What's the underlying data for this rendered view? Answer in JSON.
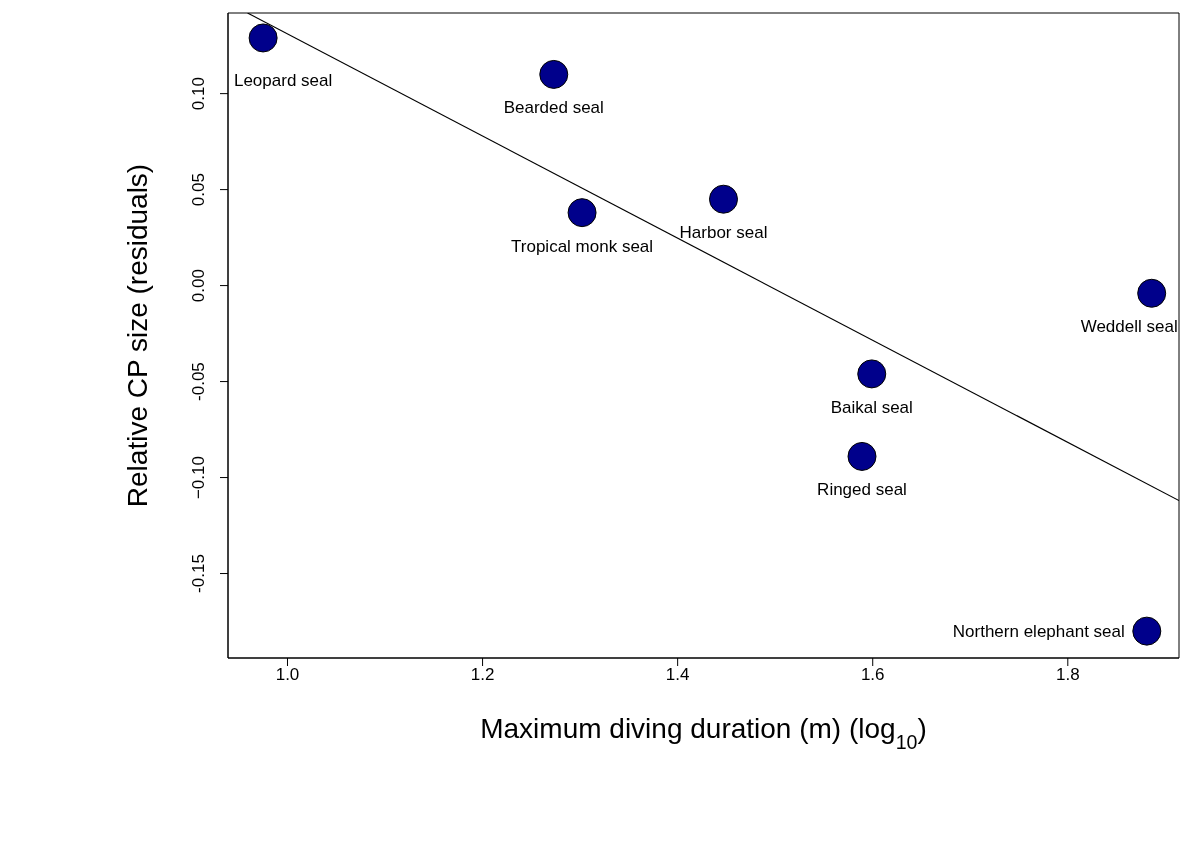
{
  "chart_data": {
    "type": "scatter",
    "xlabel": "Maximum diving duration (m) (log$_{10}$)",
    "ylabel": "Relative CP size (residuals)",
    "xlim": [
      0.939,
      1.914
    ],
    "ylim": [
      -0.194,
      0.142
    ],
    "xticks": [
      {
        "value": 1,
        "label": "1.0"
      },
      1.2,
      1.4,
      1.6,
      1.8
    ],
    "yticks": [
      -0.15,
      {
        "value": -0.1,
        "label": "−0.10"
      },
      -0.05,
      {
        "value": 0,
        "label": "0.00"
      },
      0.05,
      {
        "value": 0.1,
        "label": "0.10"
      }
    ],
    "grid": false,
    "legend": false,
    "marker": "circle",
    "series": [
      {
        "color": "#00008b",
        "x": [
          0.975,
          1.273,
          1.302,
          1.447,
          1.886,
          1.599,
          1.589,
          1.881
        ],
        "values": [
          0.129,
          0.11,
          0.038,
          0.045,
          -0.004,
          -0.046,
          -0.089,
          -0.18
        ]
      },
      {
        "type": "line",
        "marker": "none",
        "color": "#000000",
        "x": [
          0.959,
          1.914
        ],
        "values": [
          0.142,
          -0.112
        ]
      }
    ],
    "annotations": [
      {
        "text": "Leopard seal",
        "x": 0.975,
        "y": 0.129
      },
      {
        "text": "Bearded seal",
        "x": 1.273,
        "y": 0.11
      },
      {
        "text": "Tropical monk seal",
        "x": 1.302,
        "y": 0.038
      },
      {
        "text": "Harbor seal",
        "x": 1.447,
        "y": 0.045
      },
      {
        "text": "Weddell seal",
        "x": 1.886,
        "y": -0.004
      },
      {
        "text": "Baikal seal",
        "x": 1.599,
        "y": -0.046
      },
      {
        "text": "Ringed seal",
        "x": 1.589,
        "y": -0.089
      },
      {
        "text": "Northern elephant seal",
        "x": 1.881,
        "y": -0.18
      }
    ]
  }
}
